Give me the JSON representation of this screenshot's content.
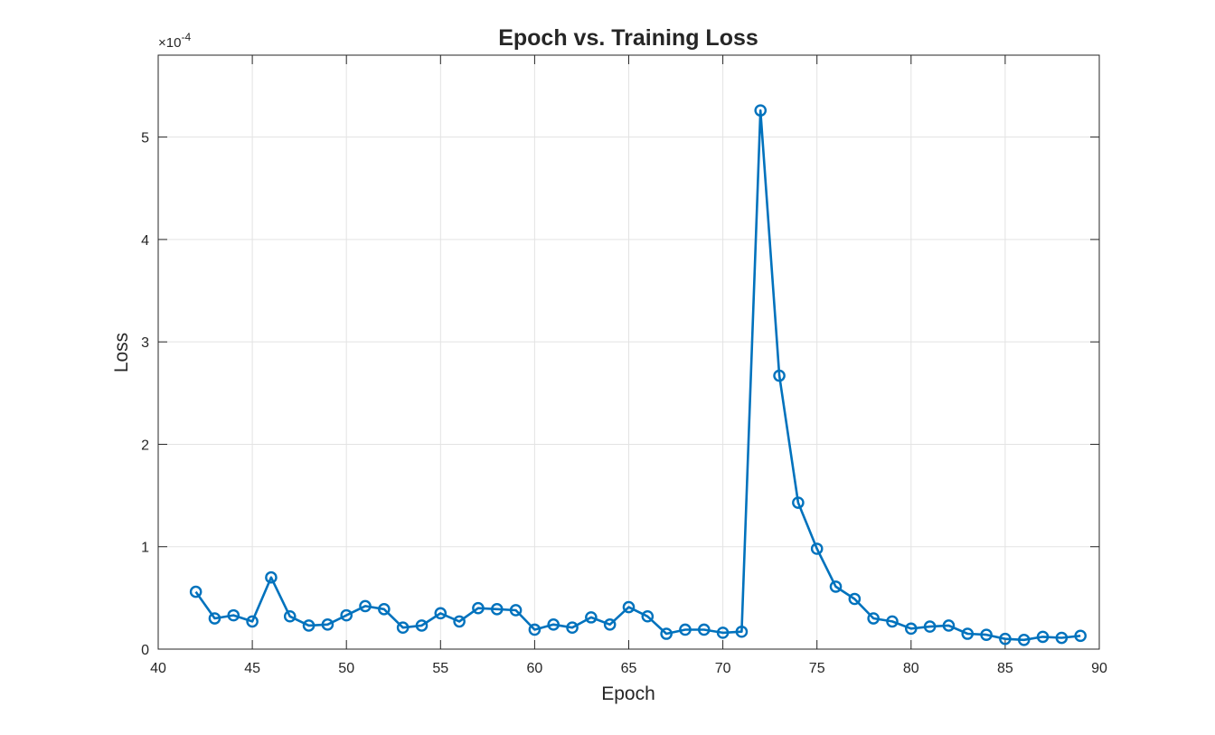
{
  "chart_data": {
    "type": "line",
    "title": "Epoch vs. Training Loss",
    "xlabel": "Epoch",
    "ylabel": "Loss",
    "y_exponent_label": "×10",
    "y_exponent_power": "-4",
    "xlim": [
      40,
      90
    ],
    "ylim": [
      0,
      5.8
    ],
    "xticks": [
      40,
      45,
      50,
      55,
      60,
      65,
      70,
      75,
      80,
      85,
      90
    ],
    "yticks": [
      0,
      1,
      2,
      3,
      4,
      5
    ],
    "grid": true,
    "marker": "circle",
    "color": "#0072BD",
    "series": [
      {
        "x": [
          42,
          43,
          44,
          45,
          46,
          47,
          48,
          49,
          50,
          51,
          52,
          53,
          54,
          55,
          56,
          57,
          58,
          59,
          60,
          61,
          62,
          63,
          64,
          65,
          66,
          67,
          68,
          69,
          70,
          71,
          72,
          73,
          74,
          75,
          76,
          77,
          78,
          79,
          80,
          81,
          82,
          83,
          84,
          85,
          86,
          87,
          88,
          89
        ],
        "values": [
          0.56,
          0.3,
          0.33,
          0.27,
          0.7,
          0.32,
          0.23,
          0.24,
          0.33,
          0.42,
          0.39,
          0.21,
          0.23,
          0.35,
          0.27,
          0.4,
          0.39,
          0.38,
          0.19,
          0.24,
          0.21,
          0.31,
          0.24,
          0.41,
          0.32,
          0.15,
          0.19,
          0.19,
          0.16,
          0.17,
          5.26,
          2.67,
          1.43,
          0.98,
          0.61,
          0.49,
          0.3,
          0.27,
          0.2,
          0.22,
          0.23,
          0.15,
          0.14,
          0.1,
          0.09,
          0.12,
          0.11,
          0.13
        ]
      }
    ]
  }
}
